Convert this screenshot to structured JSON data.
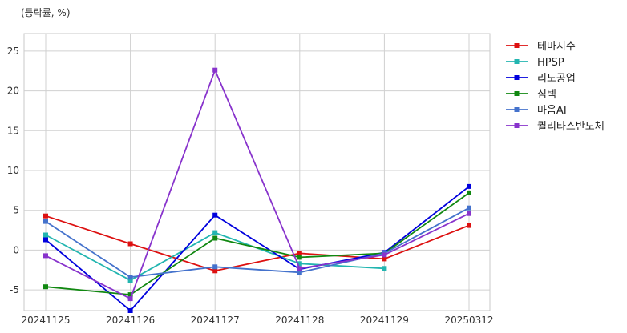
{
  "chart_data": {
    "type": "line",
    "title": "",
    "unit_label": "(등락률, %)",
    "xlabel": "",
    "ylabel": "",
    "x": [
      "20241125",
      "20241126",
      "20241127",
      "20241128",
      "20241129",
      "20250312"
    ],
    "ylim": [
      -7.6,
      27.2
    ],
    "yticks": [
      -5,
      0,
      5,
      10,
      15,
      20,
      25
    ],
    "grid": true,
    "legend_position": "outside-top-right",
    "series": [
      {
        "name": "테마지수",
        "color": "#dd1111",
        "values": [
          4.3,
          0.8,
          -2.6,
          -0.4,
          -1.1,
          3.1
        ]
      },
      {
        "name": "HPSP",
        "color": "#22b5b0",
        "values": [
          1.9,
          -3.8,
          2.2,
          -1.7,
          -2.3,
          null
        ]
      },
      {
        "name": "리노공업",
        "color": "#0000dd",
        "values": [
          1.3,
          -7.6,
          4.4,
          -2.4,
          -0.3,
          8.0
        ]
      },
      {
        "name": "심텍",
        "color": "#118811",
        "values": [
          -4.6,
          -5.6,
          1.5,
          -0.9,
          -0.4,
          7.2
        ]
      },
      {
        "name": "마음AI",
        "color": "#4472cc",
        "values": [
          3.6,
          -3.4,
          -2.1,
          -2.8,
          -0.4,
          5.3
        ]
      },
      {
        "name": "퀄리타스반도체",
        "color": "#8833cc",
        "values": [
          -0.7,
          -6.1,
          22.6,
          -2.3,
          -0.6,
          4.6
        ]
      }
    ]
  }
}
